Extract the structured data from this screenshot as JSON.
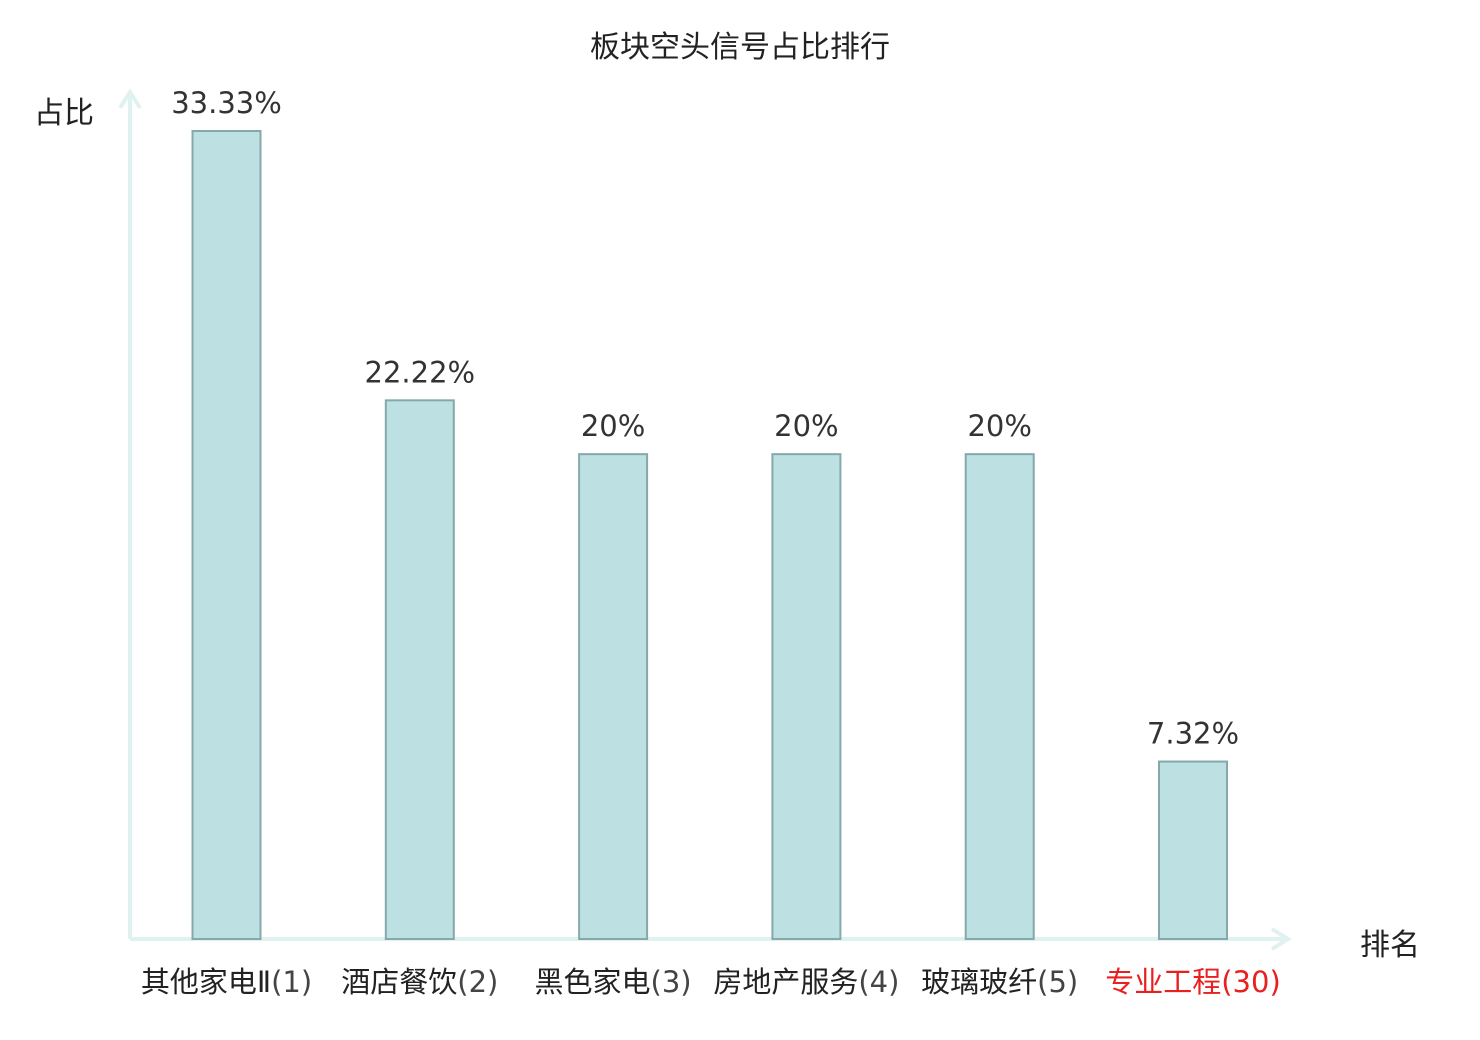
{
  "chart_data": {
    "type": "bar",
    "title": "板块空头信号占比排行",
    "xlabel": "排名",
    "ylabel": "占比",
    "ylim": [
      0,
      33.33
    ],
    "categories": [
      {
        "name": "其他家电Ⅱ",
        "rank": "(1)",
        "highlight": false
      },
      {
        "name": "酒店餐饮",
        "rank": "(2)",
        "highlight": false
      },
      {
        "name": "黑色家电",
        "rank": "(3)",
        "highlight": false
      },
      {
        "name": "房地产服务",
        "rank": "(4)",
        "highlight": false
      },
      {
        "name": "玻璃玻纤",
        "rank": "(5)",
        "highlight": false
      },
      {
        "name": "专业工程",
        "rank": "(30)",
        "highlight": true
      }
    ],
    "values": [
      33.33,
      22.22,
      20,
      20,
      20,
      7.32
    ],
    "value_labels": [
      "33.33%",
      "22.22%",
      "20%",
      "20%",
      "20%",
      "7.32%"
    ],
    "grid": false,
    "legend": "none"
  },
  "colors": {
    "bar_fill": "#bde1e3",
    "bar_stroke": "#85a9ab",
    "axis": "#e0f2f0",
    "highlight": "#e8201f"
  }
}
